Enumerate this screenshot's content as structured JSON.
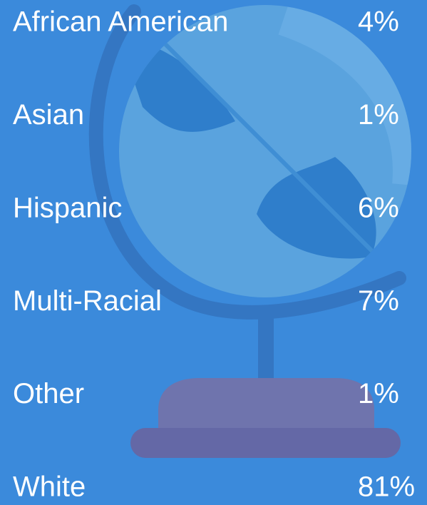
{
  "rows": [
    {
      "label": "African American",
      "value": "4%"
    },
    {
      "label": "Asian",
      "value": "1%"
    },
    {
      "label": "Hispanic",
      "value": "6%"
    },
    {
      "label": "Multi-Racial",
      "value": "7%"
    },
    {
      "label": "Other",
      "value": "1%"
    },
    {
      "label": "White",
      "value": "81%"
    }
  ]
}
